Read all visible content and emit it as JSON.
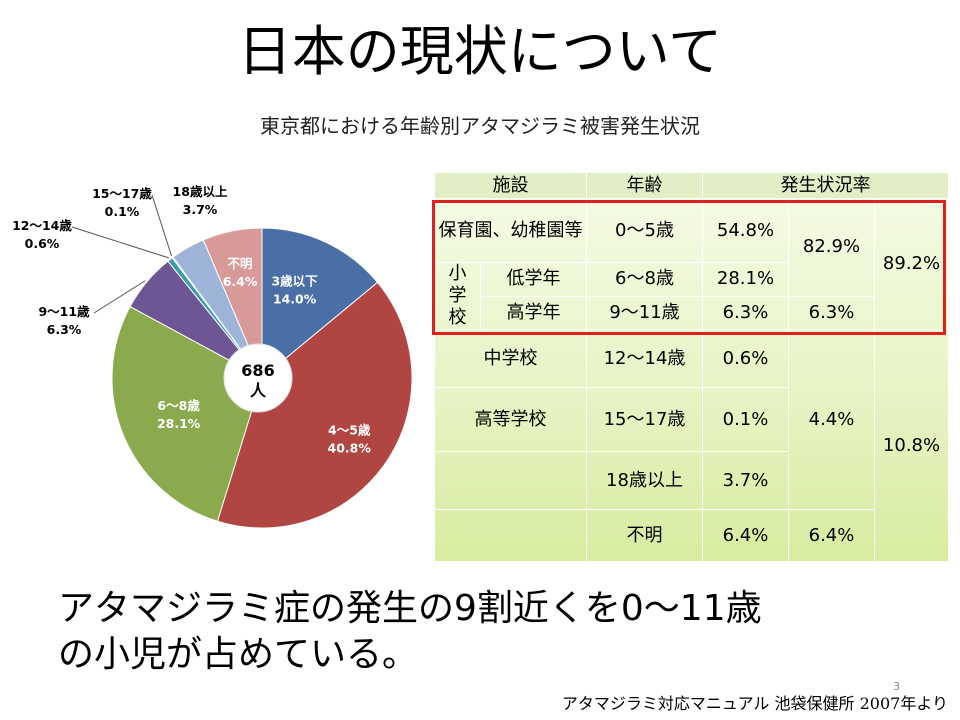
{
  "slide": {
    "title": "日本の現状について",
    "caption_line1": "アタマジラミ症の発生の9割近くを0～11歳",
    "caption_line2": "の小児が占めている。",
    "page_number": "3",
    "source": "アタマジラミ対応マニュアル 池袋保健所 2007年より"
  },
  "chart_data": {
    "type": "pie",
    "title": "東京都における年齢別アタマジラミ被害発生状況",
    "center_label_line1": "686",
    "center_label_line2": "人",
    "slices": [
      {
        "name": "3歳以下",
        "value": 14.0,
        "label": "14.0%",
        "color": "#4a6fa6"
      },
      {
        "name": "4～5歳",
        "value": 40.8,
        "label": "40.8%",
        "color": "#b04542"
      },
      {
        "name": "6～8歳",
        "value": 28.1,
        "label": "28.1%",
        "color": "#8aaa4d"
      },
      {
        "name": "9～11歳",
        "value": 6.3,
        "label": "6.3%",
        "color": "#6e5694"
      },
      {
        "name": "12～14歳",
        "value": 0.6,
        "label": "0.6%",
        "color": "#3d9db0"
      },
      {
        "name": "15～17歳",
        "value": 0.1,
        "label": "0.1%",
        "color": "#e08a3c"
      },
      {
        "name": "18歳以上",
        "value": 3.7,
        "label": "3.7%",
        "color": "#9eb3d8"
      },
      {
        "name": "不明",
        "value": 6.4,
        "label": "6.4%",
        "color": "#d79a98"
      }
    ]
  },
  "table": {
    "headers": [
      "施設",
      "年齢",
      "発生状況率"
    ],
    "rows": {
      "hoiku": {
        "facility": "保育園、幼稚園等",
        "age": "0～5歳",
        "rate": "54.8%"
      },
      "shou_low": {
        "facility": "低学年",
        "age": "6～8歳",
        "rate": "28.1%"
      },
      "shou_high": {
        "facility": "高学年",
        "age": "9～11歳",
        "rate": "6.3%"
      },
      "chu": {
        "facility": "中学校",
        "age": "12～14歳",
        "rate": "0.6%"
      },
      "kou": {
        "facility": "高等学校",
        "age": "15～17歳",
        "rate": "0.1%"
      },
      "over18": {
        "facility": "",
        "age": "18歳以上",
        "rate": "3.7%"
      },
      "unknown": {
        "facility": "",
        "age": "不明",
        "rate": "6.4%"
      }
    },
    "shougakkou_label": "小学校",
    "sub_0_8": "82.9%",
    "sub_9_11": "6.3%",
    "total_0_11": "89.2%",
    "sub_12_plus": "4.4%",
    "sub_unknown": "6.4%",
    "total_rest": "10.8%"
  }
}
